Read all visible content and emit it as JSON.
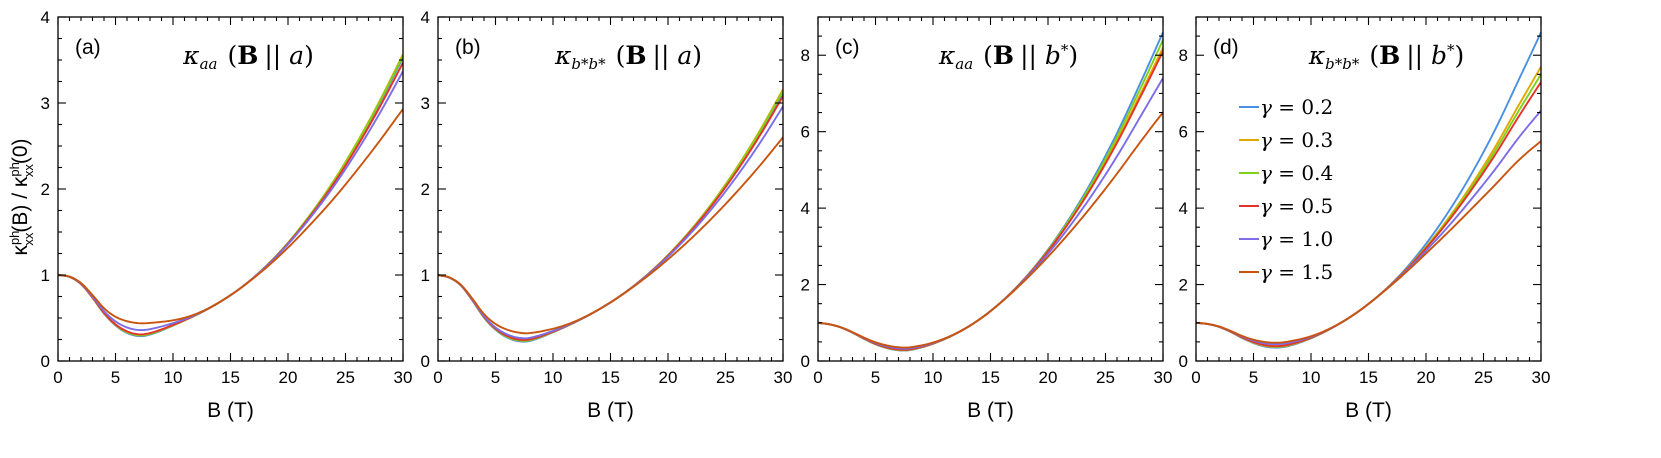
{
  "figure": {
    "ylabel": "κ",
    "ylabel_sup": "ph",
    "ylabel_sub": "xx",
    "ylabel_mid": "(B) / κ",
    "ylabel_end": "(0)"
  },
  "chart_data": [
    {
      "type": "line",
      "panel": "(a)",
      "title": "κ",
      "title_sub": "aa",
      "title_bold": "B",
      "title_rest": "|| a",
      "title_sup": "",
      "xlabel": "B (T)",
      "ylabel": "κxx^ph(B) / κxx^ph(0)",
      "xlim": [
        0,
        30
      ],
      "ylim": [
        0,
        4
      ],
      "xticks": [
        0,
        5,
        10,
        15,
        20,
        25,
        30
      ],
      "yticks": [
        0,
        1,
        2,
        3,
        4
      ],
      "key": [
        [
          0,
          1.0
        ],
        [
          1,
          0.98
        ],
        [
          2,
          0.9
        ],
        [
          3,
          0.75
        ],
        [
          4,
          0.58
        ],
        [
          5,
          0.46
        ],
        [
          6,
          0.39
        ],
        [
          7,
          0.36
        ],
        [
          8,
          0.37
        ],
        [
          10,
          0.44
        ],
        [
          12,
          0.54
        ],
        [
          14,
          0.68
        ],
        [
          16,
          0.86
        ],
        [
          18,
          1.08
        ],
        [
          20,
          1.34
        ],
        [
          22,
          1.64
        ],
        [
          24,
          1.97
        ],
        [
          26,
          2.34
        ],
        [
          28,
          2.74
        ],
        [
          30,
          3.17
        ]
      ],
      "series": [
        {
          "name": "γ = 0.2",
          "dmin": -0.07,
          "dend": 0.36
        },
        {
          "name": "γ = 0.3",
          "dmin": -0.06,
          "dend": 0.4
        },
        {
          "name": "γ = 0.4",
          "dmin": -0.06,
          "dend": 0.38
        },
        {
          "name": "γ = 0.5",
          "dmin": -0.05,
          "dend": 0.3
        },
        {
          "name": "γ = 1.0",
          "dmin": 0.0,
          "dend": 0.2
        },
        {
          "name": "γ = 1.5",
          "dmin": 0.08,
          "dend": -0.24
        }
      ]
    },
    {
      "type": "line",
      "panel": "(b)",
      "title": "κ",
      "title_sub": "b*b*",
      "title_bold": "B",
      "title_rest": "|| a",
      "title_sup": "",
      "xlabel": "B (T)",
      "ylabel": "κxx^ph(B) / κxx^ph(0)",
      "xlim": [
        0,
        30
      ],
      "ylim": [
        0,
        4
      ],
      "xticks": [
        0,
        5,
        10,
        15,
        20,
        25,
        30
      ],
      "yticks": [
        0,
        1,
        2,
        3,
        4
      ],
      "key": [
        [
          0,
          1.0
        ],
        [
          1,
          0.97
        ],
        [
          2,
          0.88
        ],
        [
          3,
          0.71
        ],
        [
          4,
          0.52
        ],
        [
          5,
          0.39
        ],
        [
          6,
          0.31
        ],
        [
          7,
          0.27
        ],
        [
          8,
          0.27
        ],
        [
          10,
          0.35
        ],
        [
          12,
          0.46
        ],
        [
          14,
          0.6
        ],
        [
          16,
          0.77
        ],
        [
          18,
          0.97
        ],
        [
          20,
          1.2
        ],
        [
          22,
          1.46
        ],
        [
          24,
          1.75
        ],
        [
          26,
          2.07
        ],
        [
          28,
          2.42
        ],
        [
          30,
          2.8
        ]
      ],
      "series": [
        {
          "name": "γ = 0.2",
          "dmin": -0.04,
          "dend": 0.32
        },
        {
          "name": "γ = 0.3",
          "dmin": -0.03,
          "dend": 0.36
        },
        {
          "name": "γ = 0.4",
          "dmin": -0.03,
          "dend": 0.34
        },
        {
          "name": "γ = 0.5",
          "dmin": -0.02,
          "dend": 0.28
        },
        {
          "name": "γ = 1.0",
          "dmin": 0.0,
          "dend": 0.16
        },
        {
          "name": "γ = 1.5",
          "dmin": 0.06,
          "dend": -0.2
        }
      ]
    },
    {
      "type": "line",
      "panel": "(c)",
      "title": "κ",
      "title_sub": "aa",
      "title_bold": "B",
      "title_rest": "|| b",
      "title_sup": "*",
      "xlabel": "B (T)",
      "ylabel": "κxx^ph(B) / κxx^ph(0)",
      "xlim": [
        0,
        30
      ],
      "ylim": [
        0,
        9
      ],
      "xticks": [
        0,
        5,
        10,
        15,
        20,
        25,
        30
      ],
      "yticks": [
        0,
        2,
        4,
        6,
        8
      ],
      "key": [
        [
          0,
          1.0
        ],
        [
          1,
          0.96
        ],
        [
          2,
          0.88
        ],
        [
          3,
          0.75
        ],
        [
          4,
          0.6
        ],
        [
          5,
          0.47
        ],
        [
          6,
          0.38
        ],
        [
          7,
          0.33
        ],
        [
          8,
          0.33
        ],
        [
          10,
          0.47
        ],
        [
          12,
          0.72
        ],
        [
          14,
          1.08
        ],
        [
          16,
          1.56
        ],
        [
          18,
          2.16
        ],
        [
          20,
          2.88
        ],
        [
          22,
          3.72
        ],
        [
          24,
          4.68
        ],
        [
          26,
          5.76
        ],
        [
          28,
          6.96
        ],
        [
          30,
          8.2
        ]
      ],
      "series": [
        {
          "name": "γ = 0.2",
          "dmin": -0.05,
          "dend": 0.4
        },
        {
          "name": "γ = 0.3",
          "dmin": -0.04,
          "dend": 0.0
        },
        {
          "name": "γ = 0.4",
          "dmin": -0.04,
          "dend": 0.2
        },
        {
          "name": "γ = 0.5",
          "dmin": -0.03,
          "dend": -0.1
        },
        {
          "name": "γ = 1.0",
          "dmin": 0.0,
          "dend": -0.8
        },
        {
          "name": "γ = 1.5",
          "dmin": 0.03,
          "dend": -1.7
        }
      ]
    },
    {
      "type": "line",
      "panel": "(d)",
      "title": "κ",
      "title_sub": "b*b*",
      "title_bold": "B",
      "title_rest": "|| b",
      "title_sup": "*",
      "xlabel": "B (T)",
      "ylabel": "κxx^ph(B) / κxx^ph(0)",
      "xlim": [
        0,
        30
      ],
      "ylim": [
        0,
        9
      ],
      "xticks": [
        0,
        5,
        10,
        15,
        20,
        25,
        30
      ],
      "yticks": [
        0,
        2,
        4,
        6,
        8
      ],
      "key": [
        [
          0,
          1.0
        ],
        [
          1,
          0.97
        ],
        [
          2,
          0.9
        ],
        [
          3,
          0.78
        ],
        [
          4,
          0.64
        ],
        [
          5,
          0.53
        ],
        [
          6,
          0.46
        ],
        [
          7,
          0.44
        ],
        [
          8,
          0.47
        ],
        [
          10,
          0.63
        ],
        [
          12,
          0.9
        ],
        [
          14,
          1.27
        ],
        [
          16,
          1.74
        ],
        [
          18,
          2.3
        ],
        [
          20,
          2.96
        ],
        [
          22,
          3.7
        ],
        [
          24,
          4.53
        ],
        [
          26,
          5.44
        ],
        [
          28,
          6.44
        ],
        [
          30,
          7.4
        ]
      ],
      "series": [
        {
          "name": "γ = 0.2",
          "dmin": -0.09,
          "dend": 1.2
        },
        {
          "name": "γ = 0.3",
          "dmin": -0.07,
          "dend": 0.3
        },
        {
          "name": "γ = 0.4",
          "dmin": -0.06,
          "dend": 0.1
        },
        {
          "name": "γ = 0.5",
          "dmin": -0.05,
          "dend": -0.1
        },
        {
          "name": "γ = 1.0",
          "dmin": 0.0,
          "dend": -0.85
        },
        {
          "name": "γ = 1.5",
          "dmin": 0.04,
          "dend": -1.65
        }
      ]
    }
  ],
  "legend": {
    "items": [
      {
        "label": "γ = 0.2",
        "color": "#4a90e2"
      },
      {
        "label": "γ = 0.3",
        "color": "#e0a800"
      },
      {
        "label": "γ = 0.4",
        "color": "#7fd11c"
      },
      {
        "label": "γ = 0.5",
        "color": "#e6332a"
      },
      {
        "label": "γ = 1.0",
        "color": "#7b6ee6"
      },
      {
        "label": "γ = 1.5",
        "color": "#c8550f"
      }
    ]
  }
}
